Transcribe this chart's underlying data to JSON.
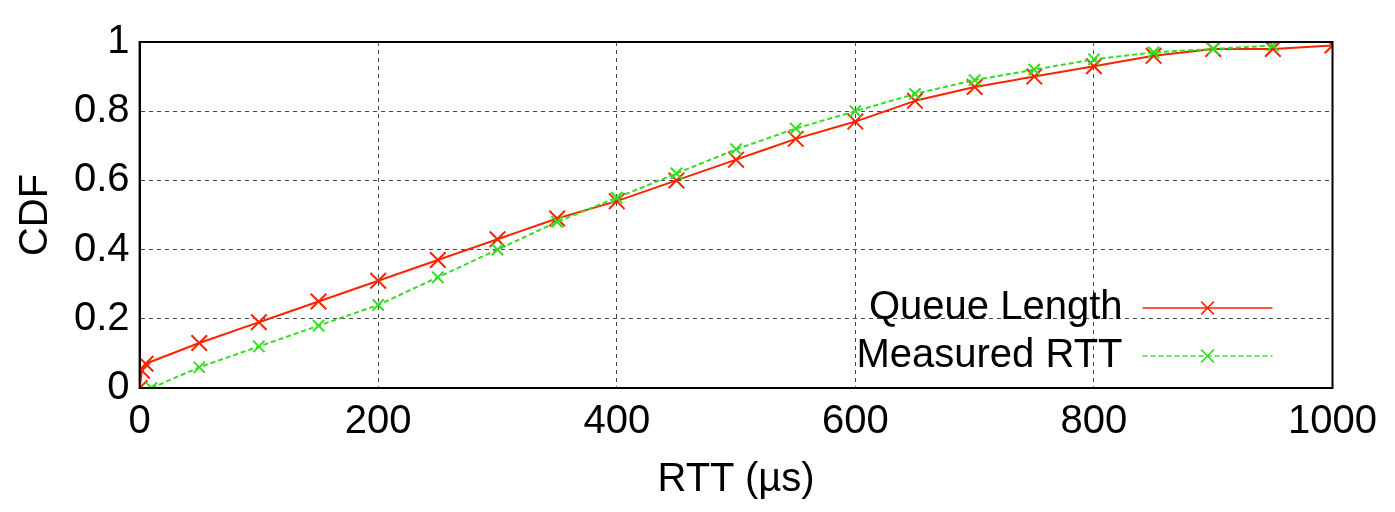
{
  "chart_data": {
    "type": "line",
    "xlabel": "RTT (µs)",
    "ylabel": "CDF",
    "xlim": [
      0,
      1000
    ],
    "xticks": [
      0,
      200,
      400,
      600,
      800,
      1000
    ],
    "ylim": [
      0,
      1
    ],
    "yticks": [
      0,
      0.2,
      0.4,
      0.6,
      0.8,
      1
    ],
    "grid": true,
    "legend": "bottom right",
    "series": [
      {
        "name": "Queue Length",
        "color": "#ff2200",
        "marker": "cross",
        "line_style": "solid",
        "x": [
          0,
          2,
          5,
          50,
          100,
          150,
          200,
          250,
          300,
          350,
          400,
          450,
          500,
          550,
          600,
          650,
          700,
          750,
          800,
          850,
          900,
          950,
          1000
        ],
        "values": [
          0,
          0.05,
          0.07,
          0.13,
          0.19,
          0.25,
          0.31,
          0.37,
          0.43,
          0.49,
          0.54,
          0.6,
          0.66,
          0.72,
          0.77,
          0.83,
          0.87,
          0.9,
          0.93,
          0.96,
          0.98,
          0.98,
          0.99
        ]
      },
      {
        "name": "Measured RTT",
        "color": "#33dd22",
        "marker": "cross",
        "line_style": "dashed",
        "x": [
          10,
          50,
          100,
          150,
          200,
          250,
          300,
          350,
          400,
          450,
          500,
          550,
          600,
          650,
          700,
          750,
          800,
          850,
          900,
          950
        ],
        "values": [
          0,
          0.06,
          0.12,
          0.18,
          0.24,
          0.32,
          0.4,
          0.48,
          0.55,
          0.62,
          0.69,
          0.75,
          0.8,
          0.85,
          0.89,
          0.92,
          0.95,
          0.97,
          0.98,
          0.99
        ]
      }
    ]
  }
}
